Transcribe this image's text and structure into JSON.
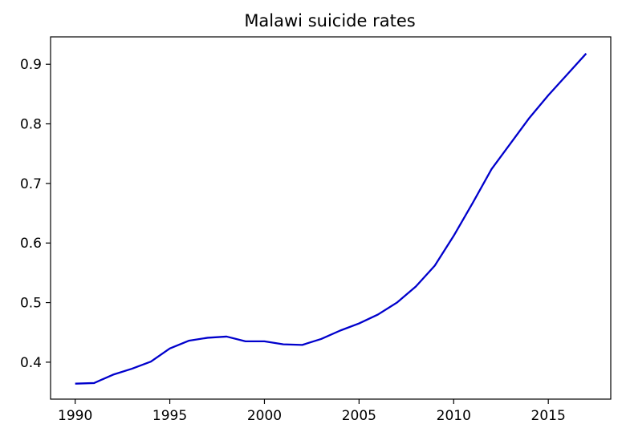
{
  "chart_data": {
    "type": "line",
    "title": "Malawi suicide rates",
    "xlabel": "",
    "ylabel": "",
    "xlim": [
      1988.7,
      2018.3
    ],
    "ylim": [
      0.338,
      0.946
    ],
    "x_ticks": [
      1990,
      1995,
      2000,
      2005,
      2010,
      2015
    ],
    "y_ticks": [
      0.4,
      0.5,
      0.6,
      0.7,
      0.8,
      0.9
    ],
    "x_tick_labels": [
      "1990",
      "1995",
      "2000",
      "2005",
      "2010",
      "2015"
    ],
    "y_tick_labels": [
      "0.4",
      "0.5",
      "0.6",
      "0.7",
      "0.8",
      "0.9"
    ],
    "grid": false,
    "legend": "none",
    "series": [
      {
        "color": "#0000cc",
        "x": [
          1990,
          1991,
          1992,
          1993,
          1994,
          1995,
          1996,
          1997,
          1998,
          1999,
          2000,
          2001,
          2002,
          2003,
          2004,
          2005,
          2006,
          2007,
          2008,
          2009,
          2010,
          2011,
          2012,
          2013,
          2014,
          2015,
          2016,
          2017
        ],
        "values": [
          0.364,
          0.365,
          0.379,
          0.389,
          0.401,
          0.423,
          0.436,
          0.441,
          0.443,
          0.435,
          0.435,
          0.43,
          0.429,
          0.439,
          0.453,
          0.465,
          0.48,
          0.5,
          0.527,
          0.562,
          0.612,
          0.667,
          0.724,
          0.767,
          0.81,
          0.848,
          0.883,
          0.918
        ]
      }
    ]
  }
}
